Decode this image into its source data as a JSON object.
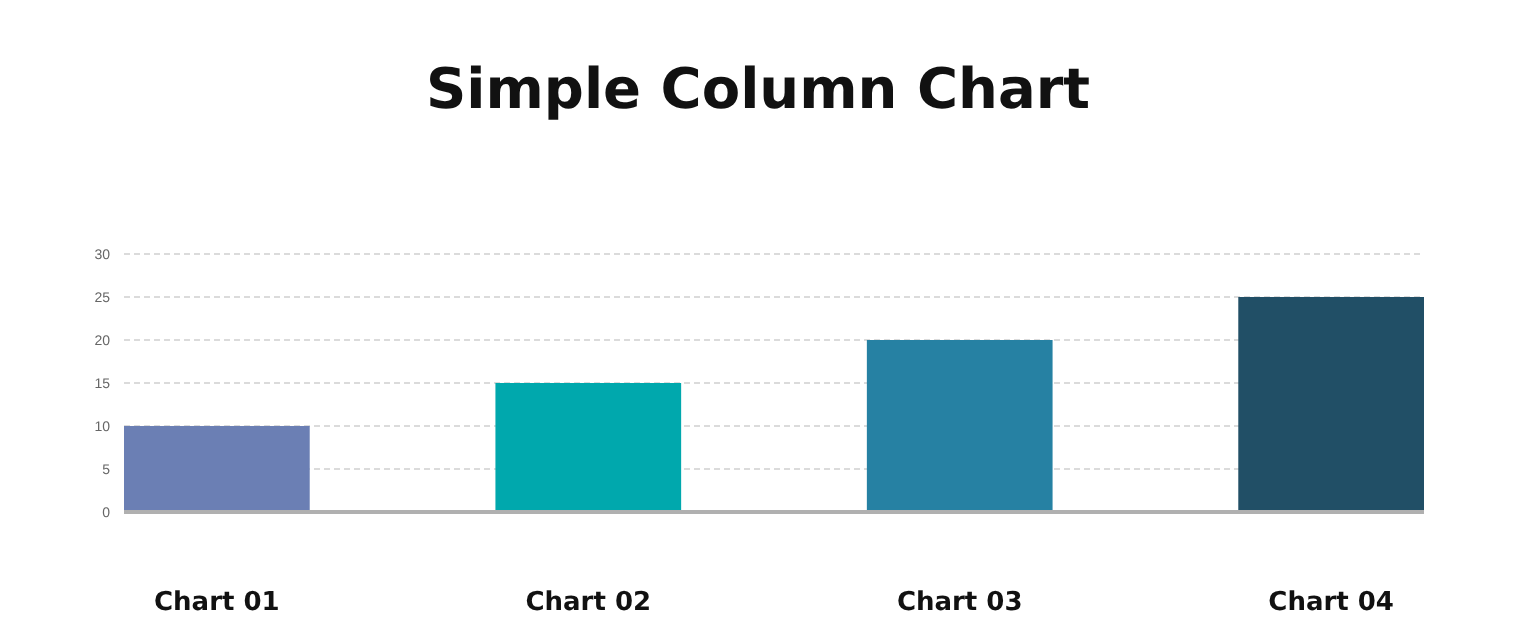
{
  "chart_data": {
    "type": "bar",
    "title": "Simple Column Chart",
    "categories": [
      "Chart 01",
      "Chart 02",
      "Chart 03",
      "Chart 04"
    ],
    "values": [
      10,
      15,
      20,
      25
    ],
    "colors": [
      "#6b7fb4",
      "#00a8ad",
      "#2681a3",
      "#214f66"
    ],
    "ylim": [
      0,
      30
    ],
    "yticks": [
      0,
      5,
      10,
      15,
      20,
      25,
      30
    ],
    "grid": "y"
  }
}
